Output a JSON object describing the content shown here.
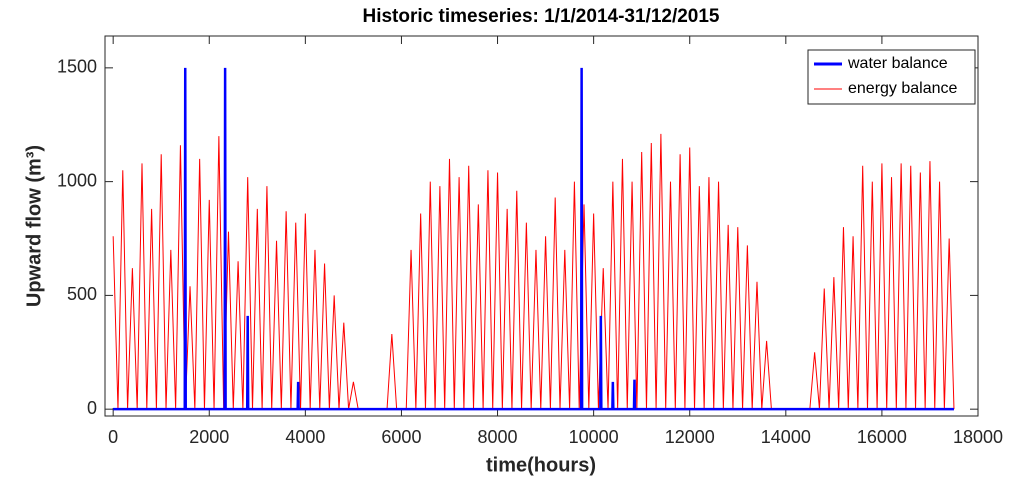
{
  "chart_data": {
    "type": "line",
    "title": "Historic timeseries: 1/1/2014-31/12/2015",
    "x_label": "time(hours)",
    "y_label": "Upward flow (m³)",
    "xlim": [
      -170,
      18000
    ],
    "ylim": [
      -30,
      1640
    ],
    "xticks": [
      0,
      2000,
      4000,
      6000,
      8000,
      10000,
      12000,
      14000,
      16000,
      18000
    ],
    "yticks": [
      0,
      500,
      1000,
      1500
    ],
    "legend": "upper right",
    "series": [
      {
        "name": "energy balance",
        "color": "#ff0000",
        "x": [
          0,
          100,
          200,
          300,
          400,
          500,
          600,
          700,
          800,
          900,
          1000,
          1100,
          1200,
          1300,
          1400,
          1500,
          1600,
          1700,
          1800,
          1900,
          2000,
          2100,
          2200,
          2300,
          2400,
          2500,
          2600,
          2700,
          2800,
          2900,
          3000,
          3100,
          3200,
          3300,
          3400,
          3500,
          3600,
          3700,
          3800,
          3900,
          4000,
          4100,
          4200,
          4300,
          4400,
          4500,
          4600,
          4700,
          4800,
          4900,
          5000,
          5100,
          5200,
          5300,
          5400,
          5500,
          5600,
          5700,
          5800,
          5900,
          6000,
          6100,
          6200,
          6300,
          6400,
          6500,
          6600,
          6700,
          6800,
          6900,
          7000,
          7100,
          7200,
          7300,
          7400,
          7500,
          7600,
          7700,
          7800,
          7900,
          8000,
          8100,
          8200,
          8300,
          8400,
          8500,
          8600,
          8700,
          8800,
          8900,
          9000,
          9100,
          9200,
          9300,
          9400,
          9500,
          9600,
          9700,
          9800,
          9900,
          10000,
          10100,
          10200,
          10300,
          10400,
          10500,
          10600,
          10700,
          10800,
          10900,
          11000,
          11100,
          11200,
          11300,
          11400,
          11500,
          11600,
          11700,
          11800,
          11900,
          12000,
          12100,
          12200,
          12300,
          12400,
          12500,
          12600,
          12700,
          12800,
          12900,
          13000,
          13100,
          13200,
          13300,
          13400,
          13500,
          13600,
          13700,
          13800,
          13900,
          14000,
          14100,
          14200,
          14300,
          14400,
          14500,
          14600,
          14700,
          14800,
          14900,
          15000,
          15100,
          15200,
          15300,
          15400,
          15500,
          15600,
          15700,
          15800,
          15900,
          16000,
          16100,
          16200,
          16300,
          16400,
          16500,
          16600,
          16700,
          16800,
          16900,
          17000,
          17100,
          17200,
          17300,
          17400,
          17500
        ],
        "values": [
          760,
          0,
          1050,
          0,
          620,
          0,
          1080,
          0,
          880,
          0,
          1120,
          0,
          700,
          0,
          1160,
          0,
          540,
          0,
          1100,
          0,
          920,
          0,
          1200,
          0,
          780,
          0,
          650,
          0,
          1020,
          0,
          880,
          0,
          980,
          0,
          740,
          0,
          870,
          0,
          820,
          0,
          860,
          0,
          700,
          0,
          640,
          0,
          500,
          0,
          380,
          0,
          120,
          0,
          0,
          0,
          0,
          0,
          0,
          0,
          330,
          0,
          0,
          0,
          700,
          0,
          860,
          0,
          1000,
          0,
          980,
          0,
          1100,
          0,
          1020,
          0,
          1070,
          0,
          900,
          0,
          1050,
          0,
          1040,
          0,
          880,
          0,
          960,
          0,
          820,
          0,
          700,
          0,
          760,
          0,
          930,
          0,
          700,
          0,
          1000,
          0,
          900,
          0,
          860,
          0,
          620,
          0,
          1000,
          0,
          1100,
          0,
          1000,
          0,
          1130,
          0,
          1170,
          0,
          1210,
          0,
          1000,
          0,
          1120,
          0,
          1150,
          0,
          980,
          0,
          1020,
          0,
          1000,
          0,
          810,
          0,
          800,
          0,
          720,
          0,
          560,
          0,
          300,
          0,
          0,
          0,
          0,
          0,
          0,
          0,
          0,
          0,
          250,
          0,
          530,
          0,
          580,
          0,
          800,
          0,
          760,
          0,
          1070,
          0,
          1000,
          0,
          1080,
          0,
          1020,
          0,
          1080,
          0,
          1070,
          0,
          1040,
          0,
          1090,
          0,
          1000,
          0,
          750,
          0
        ]
      },
      {
        "name": "water balance",
        "color": "#0000ff",
        "x": [
          0,
          1490,
          1500,
          1510,
          2320,
          2330,
          2340,
          2790,
          2800,
          2810,
          3840,
          3850,
          3860,
          9740,
          9750,
          9760,
          10140,
          10150,
          10160,
          10390,
          10400,
          10410,
          10840,
          10850,
          10860,
          17500
        ],
        "values": [
          0,
          0,
          1500,
          0,
          0,
          1500,
          0,
          0,
          410,
          0,
          0,
          120,
          0,
          0,
          1500,
          0,
          0,
          410,
          0,
          0,
          120,
          0,
          0,
          130,
          0,
          0
        ]
      }
    ]
  }
}
